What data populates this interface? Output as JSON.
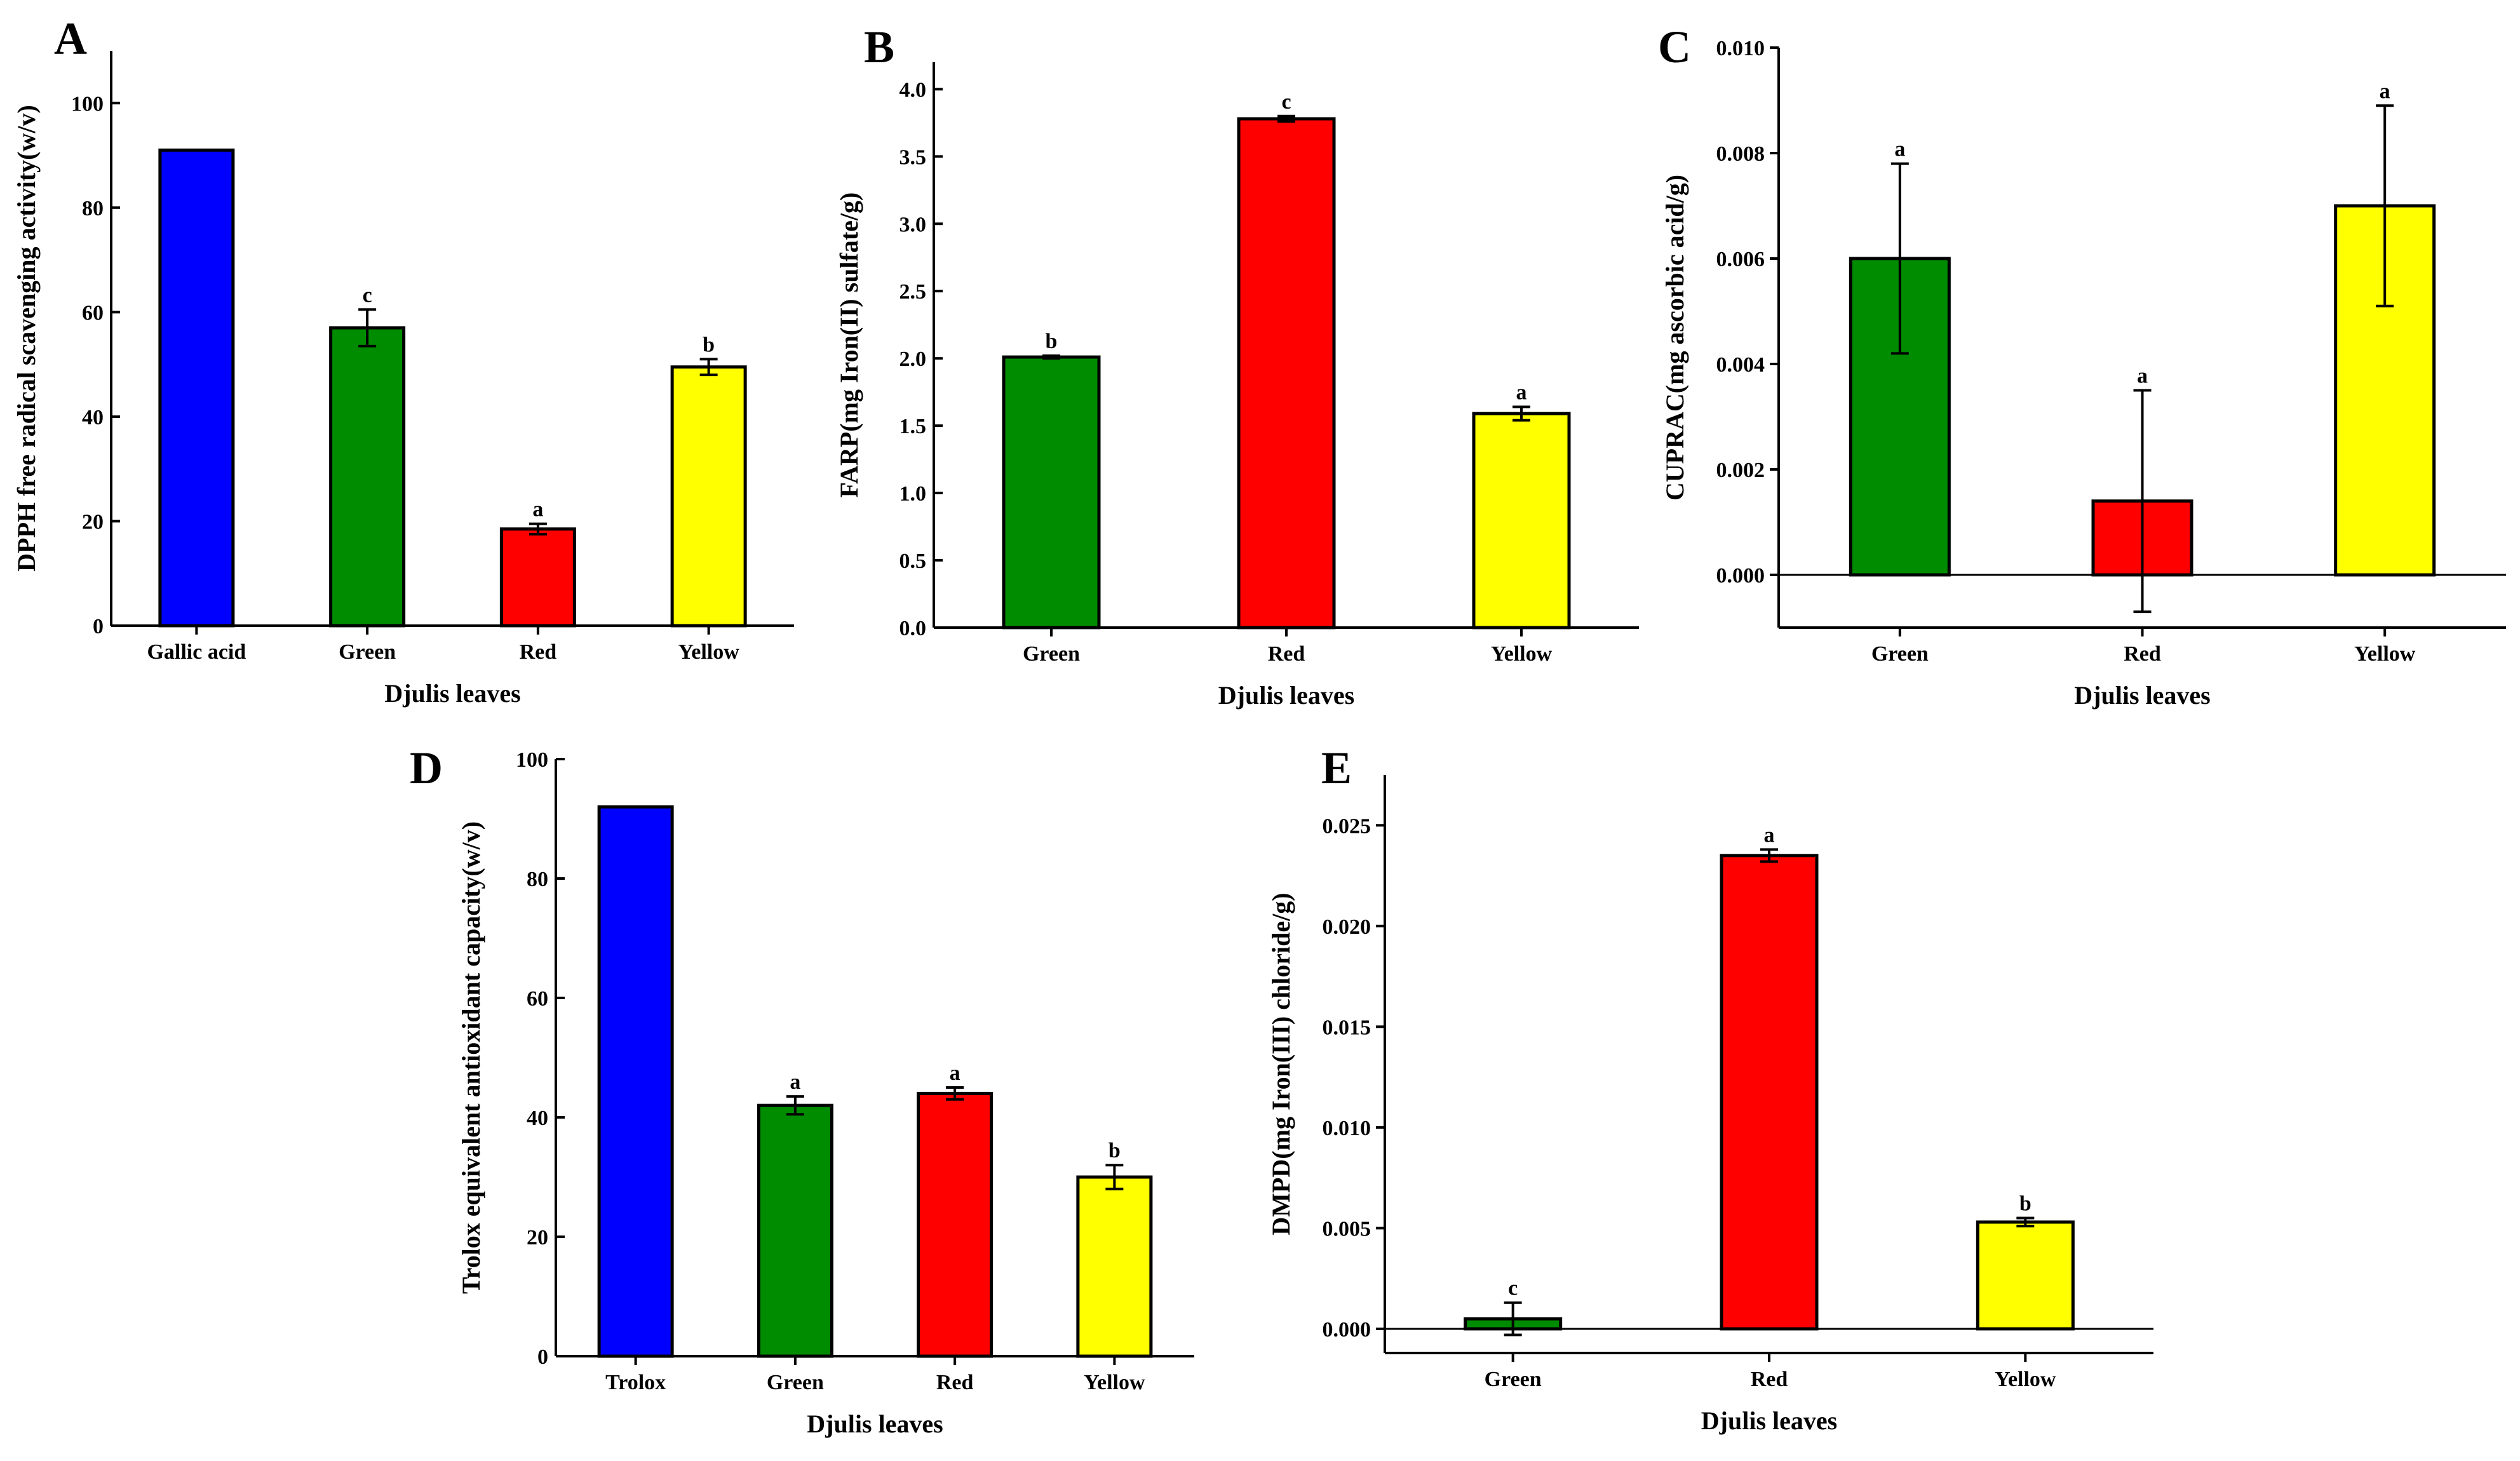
{
  "chart_data": [
    {
      "panel": "A",
      "type": "bar",
      "xlabel": "Djulis leaves",
      "ylabel": "DPPH free radical scavenging activity(w/v)",
      "categories": [
        "Gallic acid",
        "Green",
        "Red",
        "Yellow"
      ],
      "values": [
        91,
        57,
        18.5,
        49.5
      ],
      "errors": [
        0,
        3.5,
        1,
        1.5
      ],
      "labels": [
        "",
        "c",
        "a",
        "b"
      ],
      "colors": [
        "#0000ff",
        "#008c00",
        "#ff0000",
        "#ffff00"
      ],
      "ylim": [
        0,
        110
      ],
      "yticks": [
        0,
        20,
        40,
        60,
        80,
        100
      ],
      "ytick_labels": [
        "0",
        "20",
        "40",
        "60",
        "80",
        "100"
      ]
    },
    {
      "panel": "B",
      "type": "bar",
      "xlabel": "Djulis leaves",
      "ylabel": "FARP(mg Iron(II) sulfate/g)",
      "categories": [
        "Green",
        "Red",
        "Yellow"
      ],
      "values": [
        2.01,
        3.78,
        1.59
      ],
      "errors": [
        0.01,
        0.02,
        0.05
      ],
      "labels": [
        "b",
        "c",
        "a"
      ],
      "colors": [
        "#008c00",
        "#ff0000",
        "#ffff00"
      ],
      "ylim": [
        0,
        4.2
      ],
      "yticks": [
        0,
        0.5,
        1.0,
        1.5,
        2.0,
        2.5,
        3.0,
        3.5,
        4.0
      ],
      "ytick_labels": [
        "0.0",
        "0.5",
        "1.0",
        "1.5",
        "2.0",
        "2.5",
        "3.0",
        "3.5",
        "4.0"
      ]
    },
    {
      "panel": "C",
      "type": "bar",
      "xlabel": "Djulis leaves",
      "ylabel": "CUPRAC(mg ascorbic acid/g)",
      "categories": [
        "Green",
        "Red",
        "Yellow"
      ],
      "values": [
        0.006,
        0.0014,
        0.007
      ],
      "errors": [
        0.0018,
        0.0021,
        0.0019
      ],
      "labels": [
        "a",
        "a",
        "a"
      ],
      "colors": [
        "#008c00",
        "#ff0000",
        "#ffff00"
      ],
      "ylim": [
        -0.001,
        0.01
      ],
      "yticks": [
        0,
        0.002,
        0.004,
        0.006,
        0.008,
        0.01
      ],
      "ytick_labels": [
        "0.000",
        "0.002",
        "0.004",
        "0.006",
        "0.008",
        "0.010"
      ]
    },
    {
      "panel": "D",
      "type": "bar",
      "xlabel": "Djulis leaves",
      "ylabel": "Trolox equivalent antioxidant capacity(w/v)",
      "categories": [
        "Trolox",
        "Green",
        "Red",
        "Yellow"
      ],
      "values": [
        92,
        42,
        44,
        30
      ],
      "errors": [
        0,
        1.5,
        1,
        2
      ],
      "labels": [
        "",
        "a",
        "a",
        "b"
      ],
      "colors": [
        "#0000ff",
        "#008c00",
        "#ff0000",
        "#ffff00"
      ],
      "ylim": [
        0,
        100
      ],
      "yticks": [
        0,
        20,
        40,
        60,
        80,
        100
      ],
      "ytick_labels": [
        "0",
        "20",
        "40",
        "60",
        "80",
        "100"
      ]
    },
    {
      "panel": "E",
      "type": "bar",
      "xlabel": "Djulis leaves",
      "ylabel": "DMPD(mg Iron(III) chloride/g)",
      "categories": [
        "Green",
        "Red",
        "Yellow"
      ],
      "values": [
        0.0005,
        0.0235,
        0.0053
      ],
      "errors": [
        0.0008,
        0.0003,
        0.0002
      ],
      "labels": [
        "c",
        "a",
        "b"
      ],
      "colors": [
        "#008c00",
        "#ff0000",
        "#ffff00"
      ],
      "ylim": [
        -0.0012,
        0.0275
      ],
      "yticks": [
        0,
        0.005,
        0.01,
        0.015,
        0.02,
        0.025
      ],
      "ytick_labels": [
        "0.000",
        "0.005",
        "0.010",
        "0.015",
        "0.020",
        "0.025"
      ]
    }
  ]
}
